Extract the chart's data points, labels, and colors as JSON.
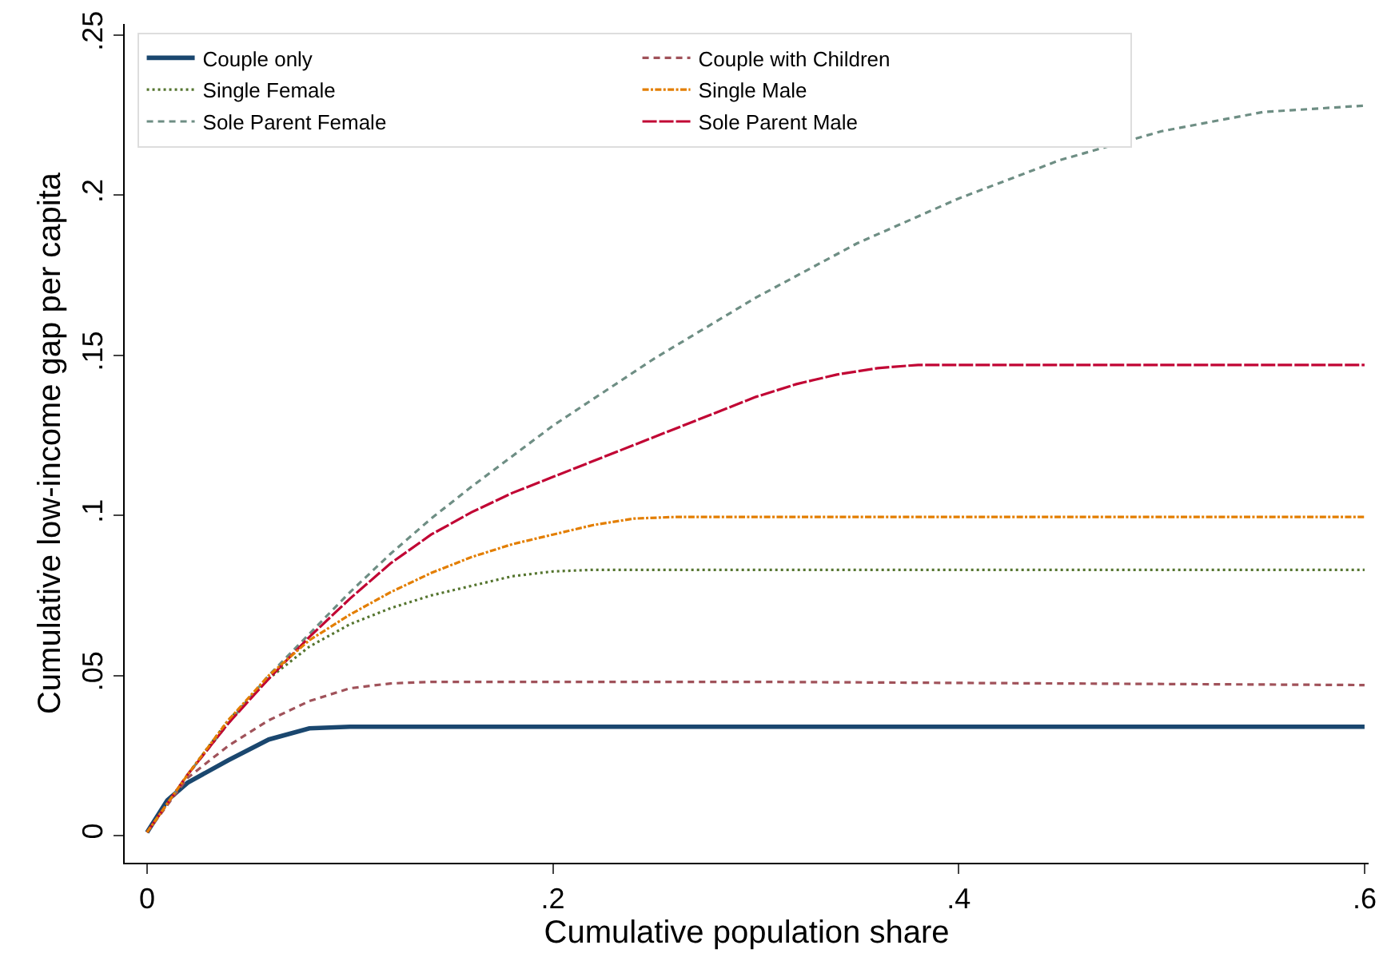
{
  "chart_data": {
    "type": "line",
    "xlabel": "Cumulative population share",
    "ylabel": "Cumulative low-income gap per capita",
    "xlim": [
      -0.011,
      0.602
    ],
    "ylim": [
      -0.0085,
      0.2535
    ],
    "xticks": [
      0,
      {
        "value": 0.2,
        "label": ".2"
      },
      {
        "value": 0.4,
        "label": ".4"
      },
      {
        "value": 0.6,
        "label": ".6"
      }
    ],
    "yticks": [
      0,
      {
        "value": 0.05,
        "label": ".05"
      },
      {
        "value": 0.1,
        "label": ".1"
      },
      {
        "value": 0.15,
        "label": ".15"
      },
      {
        "value": 0.2,
        "label": ".2"
      },
      {
        "value": 0.25,
        "label": ".25"
      }
    ],
    "grid": false,
    "legend": "top left",
    "series": [
      {
        "name": "Couple only",
        "color": "#1a476f",
        "line_style": "solid",
        "x": [
          0,
          0.01,
          0.02,
          0.04,
          0.06,
          0.08,
          0.1,
          0.6
        ],
        "values": [
          0.001,
          0.011,
          0.0165,
          0.0235,
          0.03,
          0.0335,
          0.034,
          0.034
        ]
      },
      {
        "name": "Couple with Children",
        "color": "#a0525a",
        "line_style": "dashed",
        "x": [
          0,
          0.02,
          0.04,
          0.06,
          0.08,
          0.1,
          0.12,
          0.14,
          0.3,
          0.6
        ],
        "values": [
          0.001,
          0.018,
          0.028,
          0.036,
          0.042,
          0.046,
          0.0475,
          0.048,
          0.048,
          0.047
        ]
      },
      {
        "name": "Single Female",
        "color": "#55752f",
        "line_style": "dotted",
        "x": [
          0,
          0.02,
          0.04,
          0.06,
          0.08,
          0.1,
          0.12,
          0.14,
          0.16,
          0.18,
          0.2,
          0.22,
          0.6
        ],
        "values": [
          0.001,
          0.019,
          0.036,
          0.049,
          0.059,
          0.066,
          0.071,
          0.075,
          0.078,
          0.081,
          0.0825,
          0.083,
          0.083
        ]
      },
      {
        "name": "Single Male",
        "color": "#e37e00",
        "line_style": "dashdot",
        "x": [
          0,
          0.02,
          0.04,
          0.06,
          0.08,
          0.1,
          0.12,
          0.14,
          0.16,
          0.18,
          0.2,
          0.22,
          0.24,
          0.26,
          0.6
        ],
        "values": [
          0.001,
          0.019,
          0.036,
          0.05,
          0.061,
          0.069,
          0.076,
          0.082,
          0.087,
          0.091,
          0.094,
          0.097,
          0.099,
          0.0995,
          0.0995
        ]
      },
      {
        "name": "Sole Parent Female",
        "color": "#6e8e84",
        "line_style": "dashed",
        "x": [
          0,
          0.02,
          0.04,
          0.06,
          0.08,
          0.1,
          0.12,
          0.14,
          0.16,
          0.2,
          0.25,
          0.3,
          0.35,
          0.4,
          0.45,
          0.5,
          0.55,
          0.6
        ],
        "values": [
          0.001,
          0.019,
          0.035,
          0.05,
          0.063,
          0.076,
          0.088,
          0.099,
          0.109,
          0.128,
          0.149,
          0.168,
          0.185,
          0.199,
          0.211,
          0.22,
          0.226,
          0.228
        ]
      },
      {
        "name": "Sole Parent Male",
        "color": "#c10534",
        "line_style": "longdash",
        "x": [
          0,
          0.02,
          0.04,
          0.06,
          0.08,
          0.1,
          0.12,
          0.14,
          0.16,
          0.18,
          0.2,
          0.22,
          0.24,
          0.26,
          0.28,
          0.3,
          0.32,
          0.34,
          0.36,
          0.38,
          0.6
        ],
        "values": [
          0.001,
          0.019,
          0.035,
          0.049,
          0.062,
          0.074,
          0.085,
          0.094,
          0.101,
          0.107,
          0.112,
          0.117,
          0.122,
          0.127,
          0.132,
          0.137,
          0.141,
          0.144,
          0.146,
          0.147,
          0.147
        ]
      }
    ]
  }
}
